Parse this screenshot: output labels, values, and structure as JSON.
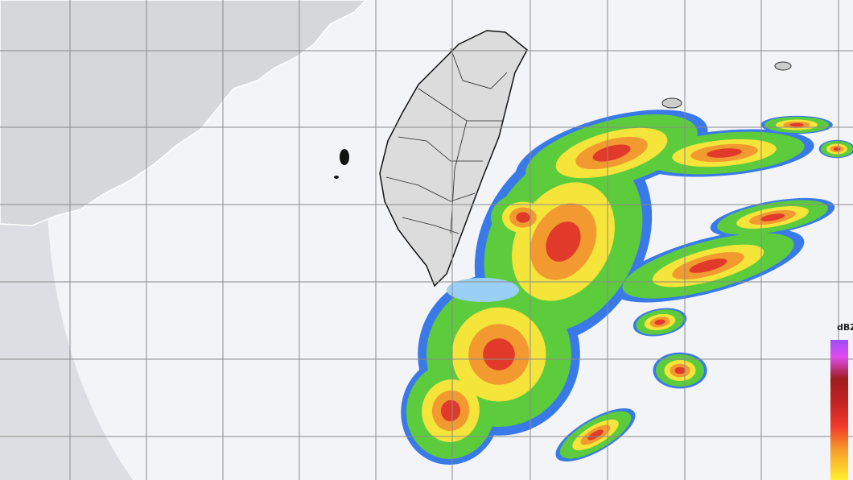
{
  "map": {
    "type": "weather radar reflectivity",
    "colors": {
      "background": "#f3f4f8",
      "land": "#d9dadd",
      "outer_range": "#dcdee3",
      "grid": "#8a8a8a",
      "rain_light": "#2a9a2a",
      "rain_green": "#5ccc3c",
      "rain_yellow": "#f5e43a",
      "rain_orange": "#f29a30",
      "rain_red": "#e23a2a",
      "rain_blue": "#3a7ae8"
    }
  },
  "legend": {
    "unit": "dBZ"
  }
}
